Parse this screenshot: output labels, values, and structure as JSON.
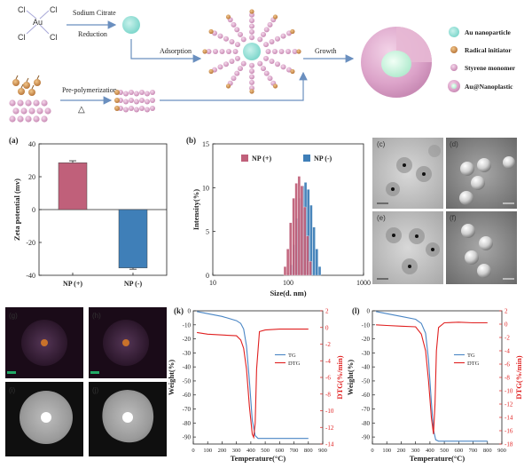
{
  "scheme": {
    "reactant_cl": "Cl",
    "reactant_au": "Au",
    "step1_line1": "Sodium Citrate",
    "step1_line2": "Reduction",
    "step2": "Adsorption",
    "step3": "Growth",
    "step4": "Pre-polymerization",
    "step4_symbol": "△",
    "legend": [
      "Au nanoparticle",
      "Radical initiator",
      "Styrene monomer",
      "Au@Nanoplastic"
    ]
  },
  "panels": {
    "a": "(a)",
    "b": "(b)",
    "c": "(c)",
    "d": "(d)",
    "e": "(e)",
    "f": "(f)",
    "g": "(g)",
    "h": "(h)",
    "i": "(i)",
    "j": "(j)",
    "k": "(k)",
    "l": "(l)"
  },
  "chart_data": [
    {
      "id": "a",
      "type": "bar",
      "categories": [
        "NP (+)",
        "NP (-)"
      ],
      "values": [
        28.5,
        -35.5
      ],
      "errors": [
        1.2,
        0.8
      ],
      "colors": [
        "#c0607a",
        "#3f7fb8"
      ],
      "ylabel": "Zeta potential (mv)",
      "ylim": [
        -40,
        40
      ],
      "yticks": [
        -40,
        -20,
        0,
        20,
        40
      ]
    },
    {
      "id": "b",
      "type": "bar",
      "xlabel": "Size(d. nm)",
      "ylabel": "Intensity(%)",
      "xscale": "log",
      "xlim": [
        10,
        1000
      ],
      "xticks": [
        10,
        100,
        1000
      ],
      "ylim": [
        0,
        15
      ],
      "yticks": [
        0,
        5,
        10,
        15
      ],
      "legend_position": "top",
      "series": [
        {
          "name": "NP (+)",
          "color": "#c0607a",
          "x": [
            91,
            99,
            108,
            118,
            128,
            140,
            152,
            166,
            181,
            197
          ],
          "values": [
            1.0,
            3.0,
            6.0,
            8.8,
            10.5,
            11.3,
            10.2,
            7.8,
            4.5,
            1.6
          ]
        },
        {
          "name": "NP (-)",
          "color": "#3f7fb8",
          "x": [
            110,
            120,
            131,
            143,
            156,
            170,
            185,
            202,
            220,
            240,
            262
          ],
          "values": [
            1.2,
            3.5,
            6.5,
            8.8,
            10.2,
            10.6,
            9.8,
            8.0,
            5.5,
            3.0,
            1.0
          ]
        }
      ]
    },
    {
      "id": "k",
      "type": "line",
      "xlabel": "Temperature(°C)",
      "ylabel": "Weight(%)",
      "y2label": "DTG(%/min)",
      "xlim": [
        0,
        900
      ],
      "xticks": [
        0,
        100,
        200,
        300,
        400,
        500,
        600,
        700,
        800,
        900
      ],
      "ylim": [
        -95,
        0
      ],
      "yticks": [
        0,
        -10,
        -20,
        -30,
        -40,
        -50,
        -60,
        -70,
        -80,
        -90
      ],
      "y2lim": [
        -14,
        2
      ],
      "y2ticks": [
        2,
        0,
        -2,
        -4,
        -6,
        -8,
        -10,
        -12,
        -14
      ],
      "legend_position": "center-right",
      "series": [
        {
          "name": "TG",
          "axis": "left",
          "color": "#4a86c5",
          "x": [
            25,
            100,
            200,
            300,
            330,
            350,
            370,
            390,
            410,
            430,
            450,
            500,
            600,
            700,
            800
          ],
          "values": [
            -0.5,
            -2,
            -4,
            -7,
            -9,
            -13,
            -25,
            -50,
            -78,
            -89,
            -91,
            -91,
            -91,
            -91,
            -91
          ]
        },
        {
          "name": "DTG",
          "axis": "right",
          "color": "#e02020",
          "x": [
            25,
            100,
            200,
            300,
            330,
            350,
            370,
            390,
            410,
            420,
            430,
            440,
            460,
            500,
            600,
            700,
            800
          ],
          "values": [
            -0.6,
            -0.8,
            -0.9,
            -1.0,
            -1.5,
            -2.5,
            -5.0,
            -9.5,
            -12.8,
            -13.2,
            -11.5,
            -5,
            -0.5,
            -0.3,
            -0.2,
            -0.2,
            -0.2
          ]
        }
      ]
    },
    {
      "id": "l",
      "type": "line",
      "xlabel": "Temperature(°C)",
      "ylabel": "Weight(%)",
      "y2label": "DTG(%/min)",
      "xlim": [
        0,
        900
      ],
      "xticks": [
        0,
        100,
        200,
        300,
        400,
        500,
        600,
        700,
        800,
        900
      ],
      "ylim": [
        -95,
        0
      ],
      "yticks": [
        0,
        -10,
        -20,
        -30,
        -40,
        -50,
        -60,
        -70,
        -80,
        -90
      ],
      "y2lim": [
        -18,
        2
      ],
      "y2ticks": [
        2,
        0,
        -2,
        -4,
        -6,
        -8,
        -10,
        -12,
        -14,
        -16,
        -18
      ],
      "legend_position": "center-right",
      "series": [
        {
          "name": "TG",
          "axis": "left",
          "color": "#4a86c5",
          "x": [
            25,
            100,
            200,
            300,
            340,
            370,
            390,
            410,
            425,
            440,
            460,
            500,
            600,
            700,
            800
          ],
          "values": [
            -0.5,
            -2,
            -4,
            -6,
            -9,
            -16,
            -35,
            -65,
            -85,
            -92,
            -93,
            -93,
            -93,
            -93,
            -93
          ]
        },
        {
          "name": "DTG",
          "axis": "right",
          "color": "#e02020",
          "x": [
            25,
            100,
            200,
            300,
            340,
            370,
            390,
            410,
            425,
            435,
            445,
            460,
            500,
            600,
            700,
            800
          ],
          "values": [
            -0.1,
            -0.2,
            -0.3,
            -0.4,
            -1.5,
            -4.0,
            -8.5,
            -14,
            -16.5,
            -12,
            -4,
            -0.5,
            0.2,
            0.3,
            0.2,
            0.2
          ]
        }
      ]
    }
  ]
}
